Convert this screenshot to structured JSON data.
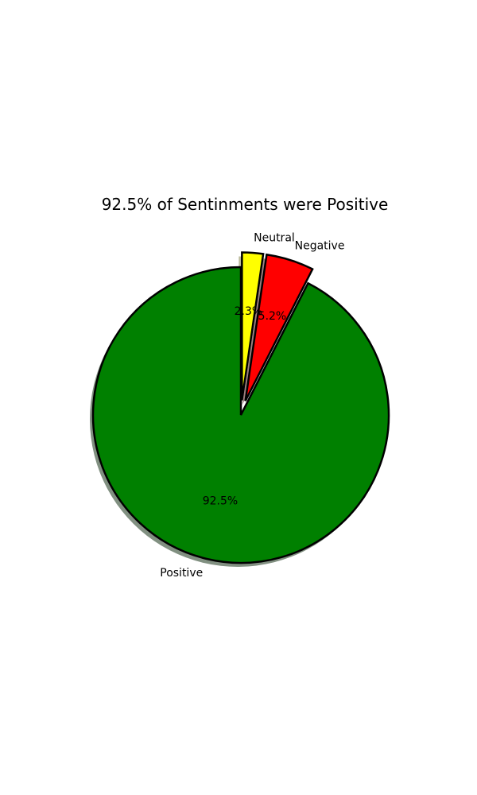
{
  "chart_data": {
    "type": "pie",
    "title": "92.5% of Sentinments were Positive",
    "start_angle_deg": 90,
    "direction": "counterclockwise",
    "shadow": true,
    "edge_color": "#000000",
    "slices": [
      {
        "label": "Positive",
        "value": 92.5,
        "pct_label": "92.5%",
        "color": "#008000",
        "exploded": false
      },
      {
        "label": "Negative",
        "value": 5.2,
        "pct_label": "5.2%",
        "color": "#ff0000",
        "exploded": true
      },
      {
        "label": "Neutral",
        "value": 2.3,
        "pct_label": "2.3%",
        "color": "#ffff00",
        "exploded": true
      }
    ]
  }
}
